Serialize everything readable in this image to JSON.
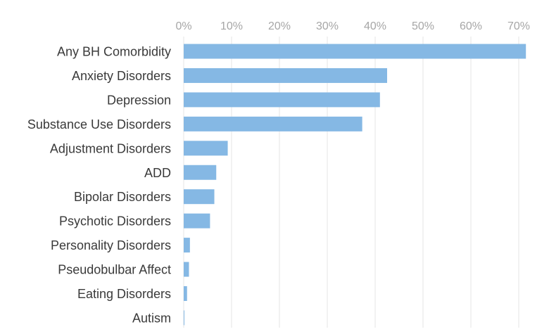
{
  "chart_data": {
    "type": "bar",
    "orientation": "horizontal",
    "categories": [
      "Any BH Comorbidity",
      "Anxiety Disorders",
      "Depression",
      "Substance Use Disorders",
      "Adjustment Disorders",
      "ADD",
      "Bipolar Disorders",
      "Psychotic Disorders",
      "Personality Disorders",
      "Pseudobulbar Affect",
      "Eating Disorders",
      "Autism"
    ],
    "values": [
      71.5,
      42.5,
      41.0,
      37.3,
      9.2,
      6.8,
      6.4,
      5.5,
      1.3,
      1.1,
      0.7,
      0.1
    ],
    "x_ticks": [
      "0%",
      "10%",
      "20%",
      "30%",
      "40%",
      "50%",
      "60%",
      "70%"
    ],
    "x_tick_values": [
      0,
      10,
      20,
      30,
      40,
      50,
      60,
      70
    ],
    "xlim": [
      0,
      76
    ],
    "x_axis_position": "top",
    "grid": true,
    "title": "",
    "xlabel": "",
    "ylabel": "",
    "colors": {
      "bar": "#85b8e4",
      "grid": "#e6e6e6",
      "tick_text": "#a6a6a6",
      "category_text": "#3a3a3a"
    }
  }
}
